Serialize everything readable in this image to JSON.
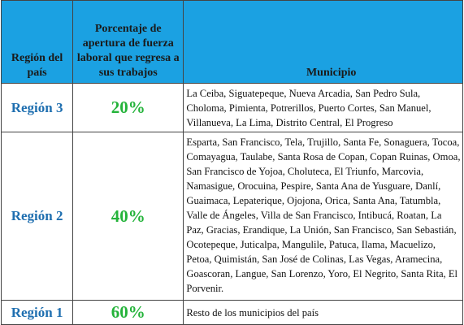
{
  "header": {
    "col_region": "Región del país",
    "col_percent": "Porcentaje de apertura de fuerza laboral que regresa a sus trabajos",
    "col_municipio": "Municipio"
  },
  "rows": [
    {
      "region": "Región 3",
      "percent": "20%",
      "municipios": "La Ceiba, Siguatepeque, Nueva Arcadia, San Pedro Sula, Choloma, Pimienta, Potrerillos, Puerto Cortes, San Manuel, Villanueva, La Lima, Distrito Central, El Progreso"
    },
    {
      "region": "Región 2",
      "percent": "40%",
      "municipios": "Esparta, San Francisco, Tela, Trujillo, Santa Fe, Sonaguera, Tocoa, Comayagua, Taulabe, Santa Rosa de Copan, Copan Ruinas, Omoa, San Francisco de Yojoa, Choluteca, El Triunfo, Marcovia, Namasigue, Orocuina, Pespire, Santa Ana de Yusguare, Danlí, Guaimaca, Lepaterique, Ojojona, Orica, Santa Ana, Tatumbla, Valle de Ángeles, Villa de San Francisco, Intibucá, Roatan, La Paz, Gracias, Erandique, La Unión, San Francisco, San Sebastián, Ocotepeque, Juticalpa, Mangulile, Patuca, Ilama, Macuelizo, Petoa, Quimistán, San José de Colinas, Las Vegas, Aramecina, Goascoran, Langue, San Lorenzo, Yoro, El Negrito, Santa Rita, El Porvenir."
    },
    {
      "region": "Región 1",
      "percent": "60%",
      "municipios": "Resto de los municipios del país"
    }
  ]
}
